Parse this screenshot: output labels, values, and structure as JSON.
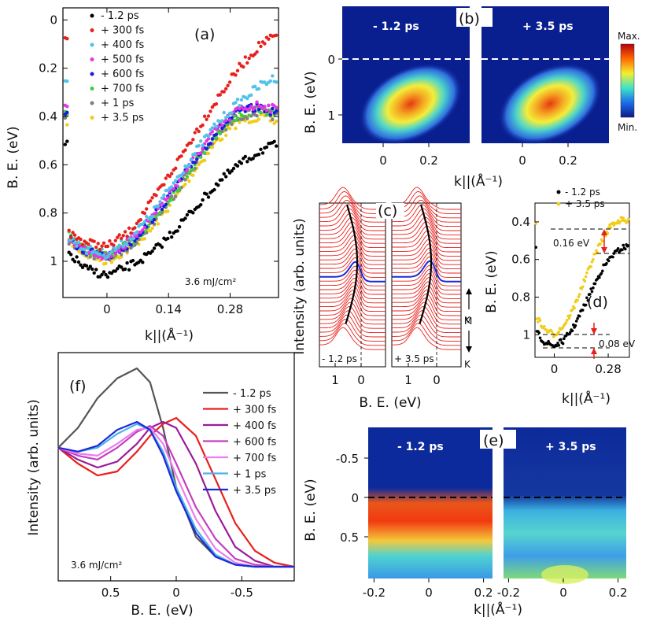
{
  "figure_title": "",
  "chart_data": [
    {
      "panel": "(a)",
      "type": "scatter",
      "xlabel": "k||(Å⁻¹)",
      "ylabel": "B. E. (eV)",
      "x_ticks": [
        "0",
        "0.14",
        "0.28"
      ],
      "y_ticks": [
        "0",
        "0.2",
        "0.4",
        "0.6",
        "0.8",
        "1"
      ],
      "xlim": [
        -0.1,
        0.39
      ],
      "ylim": [
        -0.05,
        1.15
      ],
      "y_inverted": true,
      "annotation": "3.6 mJ/cm²",
      "series": [
        {
          "name": "- 1.2 ps",
          "color": "#000000",
          "x": [
            -0.09,
            -0.05,
            0.0,
            0.05,
            0.1,
            0.15,
            0.2,
            0.25,
            0.3,
            0.35,
            0.38
          ],
          "y": [
            0.96,
            1.03,
            1.06,
            1.02,
            0.97,
            0.88,
            0.78,
            0.68,
            0.6,
            0.54,
            0.52
          ]
        },
        {
          "name": "+ 300 fs",
          "color": "#e8201c",
          "x": [
            -0.09,
            -0.05,
            0.0,
            0.05,
            0.1,
            0.15,
            0.2,
            0.25,
            0.3,
            0.35,
            0.38
          ],
          "y": [
            0.88,
            0.92,
            0.94,
            0.88,
            0.76,
            0.62,
            0.47,
            0.33,
            0.2,
            0.1,
            0.07
          ]
        },
        {
          "name": "+ 400 fs",
          "color": "#4fc3e8",
          "x": [
            -0.09,
            -0.05,
            0.0,
            0.05,
            0.1,
            0.15,
            0.2,
            0.25,
            0.3,
            0.35,
            0.38
          ],
          "y": [
            0.9,
            0.95,
            0.97,
            0.91,
            0.81,
            0.68,
            0.55,
            0.43,
            0.34,
            0.27,
            0.24
          ]
        },
        {
          "name": "+ 500 fs",
          "color": "#e436e4",
          "x": [
            -0.09,
            -0.05,
            0.0,
            0.05,
            0.1,
            0.15,
            0.2,
            0.25,
            0.3,
            0.35,
            0.38
          ],
          "y": [
            0.9,
            0.95,
            0.98,
            0.92,
            0.82,
            0.7,
            0.57,
            0.45,
            0.37,
            0.35,
            0.37
          ]
        },
        {
          "name": "+ 600 fs",
          "color": "#1a1ae0",
          "x": [
            -0.09,
            -0.05,
            0.0,
            0.05,
            0.1,
            0.15,
            0.2,
            0.25,
            0.3,
            0.35,
            0.38
          ],
          "y": [
            0.9,
            0.96,
            0.98,
            0.93,
            0.83,
            0.71,
            0.58,
            0.46,
            0.38,
            0.36,
            0.38
          ]
        },
        {
          "name": "+ 700 fs",
          "color": "#3ecf3e",
          "x": [
            -0.09,
            -0.05,
            0.0,
            0.05,
            0.1,
            0.15,
            0.2,
            0.25,
            0.3,
            0.35,
            0.38
          ],
          "y": [
            0.88,
            0.95,
            0.98,
            0.93,
            0.84,
            0.72,
            0.59,
            0.47,
            0.39,
            0.37,
            0.39
          ]
        },
        {
          "name": "+ 1 ps",
          "color": "#808080",
          "x": [
            -0.09,
            -0.05,
            0.0,
            0.05,
            0.1,
            0.15,
            0.2,
            0.25,
            0.3,
            0.35,
            0.38
          ],
          "y": [
            0.91,
            0.96,
            0.99,
            0.94,
            0.85,
            0.73,
            0.6,
            0.48,
            0.4,
            0.38,
            0.4
          ]
        },
        {
          "name": "+ 3.5 ps",
          "color": "#f2cc1a",
          "x": [
            -0.09,
            -0.05,
            0.0,
            0.05,
            0.1,
            0.15,
            0.2,
            0.25,
            0.3,
            0.35,
            0.38
          ],
          "y": [
            0.91,
            0.97,
            1.0,
            0.95,
            0.87,
            0.75,
            0.62,
            0.5,
            0.42,
            0.4,
            0.42
          ]
        }
      ]
    },
    {
      "panel": "(b)",
      "type": "heatmap",
      "xlabel": "k||(Å⁻¹)",
      "ylabel": "B. E. (eV)",
      "x_ticks": [
        "0",
        "0.2"
      ],
      "y_ticks": [
        "0",
        "1"
      ],
      "subpanels": [
        "- 1.2 ps",
        "+ 3.5 ps"
      ],
      "colorbar_max": "Max.",
      "colorbar_min": "Min."
    },
    {
      "panel": "(c)",
      "type": "line",
      "xlabel": "B. E. (eV)",
      "ylabel": "Intensity (arb. units)",
      "x_ticks": [
        "1",
        "0"
      ],
      "subpanels": [
        "- 1.2 ps",
        "+ 3.5 ps"
      ],
      "side_labels": [
        "K",
        "M",
        "K"
      ]
    },
    {
      "panel": "(d)",
      "type": "scatter",
      "xlabel": "k||(Å⁻¹)",
      "ylabel": "B. E. (eV)",
      "x_ticks": [
        "0",
        "0.28"
      ],
      "y_ticks": [
        "0.4",
        "0.6",
        "0.8",
        "1"
      ],
      "xlim": [
        -0.1,
        0.39
      ],
      "ylim": [
        0.3,
        1.12
      ],
      "series": [
        {
          "name": "- 1.2 ps",
          "color": "#000000",
          "x": [
            -0.09,
            -0.05,
            0.0,
            0.05,
            0.1,
            0.15,
            0.2,
            0.25,
            0.3,
            0.35,
            0.38
          ],
          "y": [
            0.99,
            1.04,
            1.06,
            1.03,
            0.96,
            0.86,
            0.75,
            0.65,
            0.58,
            0.54,
            0.53
          ]
        },
        {
          "name": "+ 3.5 ps",
          "color": "#f2cc1a",
          "x": [
            -0.09,
            -0.05,
            0.0,
            0.05,
            0.1,
            0.15,
            0.2,
            0.25,
            0.3,
            0.35,
            0.38
          ],
          "y": [
            0.91,
            0.97,
            1.0,
            0.95,
            0.86,
            0.73,
            0.6,
            0.49,
            0.41,
            0.39,
            0.4
          ]
        }
      ],
      "annotations": [
        "0.16 eV",
        "0.08 eV"
      ]
    },
    {
      "panel": "(e)",
      "type": "heatmap",
      "xlabel": "k||(Å⁻¹)",
      "ylabel": "B. E. (eV)",
      "x_ticks": [
        "-0.2",
        "0",
        "0.2"
      ],
      "y_ticks": [
        "-0.5",
        "0",
        "0.5"
      ],
      "subpanels": [
        "- 1.2 ps",
        "+ 3.5 ps"
      ]
    },
    {
      "panel": "(f)",
      "type": "line",
      "xlabel": "B. E. (eV)",
      "ylabel": "Intensity (arb. units)",
      "x_ticks": [
        "0.5",
        "0",
        "-0.5"
      ],
      "xlim": [
        0.9,
        -0.9
      ],
      "annotation": "3.6 mJ/cm²",
      "series": [
        {
          "name": "- 1.2 ps",
          "color": "#555555",
          "x": [
            0.9,
            0.75,
            0.6,
            0.45,
            0.3,
            0.2,
            0.1,
            0.0,
            -0.15,
            -0.3,
            -0.45,
            -0.6,
            -0.75,
            -0.9
          ],
          "y": [
            0.6,
            0.7,
            0.85,
            0.95,
            1.0,
            0.93,
            0.7,
            0.4,
            0.15,
            0.05,
            0.01,
            0.0,
            0.0,
            0.0
          ]
        },
        {
          "name": "+ 300 fs",
          "color": "#e8201c",
          "x": [
            0.9,
            0.75,
            0.6,
            0.45,
            0.3,
            0.2,
            0.1,
            0.0,
            -0.15,
            -0.3,
            -0.45,
            -0.6,
            -0.75,
            -0.9
          ],
          "y": [
            0.6,
            0.52,
            0.46,
            0.48,
            0.58,
            0.66,
            0.72,
            0.75,
            0.66,
            0.44,
            0.22,
            0.08,
            0.02,
            0.0
          ]
        },
        {
          "name": "+ 400 fs",
          "color": "#9b1a9b",
          "x": [
            0.9,
            0.75,
            0.6,
            0.45,
            0.3,
            0.2,
            0.1,
            0.0,
            -0.15,
            -0.3,
            -0.45,
            -0.6,
            -0.75,
            -0.9
          ],
          "y": [
            0.6,
            0.54,
            0.5,
            0.53,
            0.62,
            0.7,
            0.73,
            0.7,
            0.52,
            0.28,
            0.1,
            0.03,
            0.0,
            0.0
          ]
        },
        {
          "name": "+ 600 fs",
          "color": "#c040c0",
          "x": [
            0.9,
            0.75,
            0.6,
            0.45,
            0.3,
            0.2,
            0.1,
            0.0,
            -0.15,
            -0.3,
            -0.45,
            -0.6,
            -0.75,
            -0.9
          ],
          "y": [
            0.6,
            0.56,
            0.54,
            0.6,
            0.68,
            0.71,
            0.66,
            0.52,
            0.3,
            0.14,
            0.04,
            0.01,
            0.0,
            0.0
          ]
        },
        {
          "name": "+ 700 fs",
          "color": "#f07af0",
          "x": [
            0.9,
            0.75,
            0.6,
            0.45,
            0.3,
            0.2,
            0.1,
            0.0,
            -0.15,
            -0.3,
            -0.45,
            -0.6,
            -0.75,
            -0.9
          ],
          "y": [
            0.6,
            0.57,
            0.56,
            0.62,
            0.69,
            0.7,
            0.62,
            0.46,
            0.24,
            0.09,
            0.02,
            0.0,
            0.0,
            0.0
          ]
        },
        {
          "name": "+ 1 ps",
          "color": "#4fb0e8",
          "x": [
            0.9,
            0.75,
            0.6,
            0.45,
            0.3,
            0.2,
            0.1,
            0.0,
            -0.15,
            -0.3,
            -0.45,
            -0.6,
            -0.75,
            -0.9
          ],
          "y": [
            0.6,
            0.58,
            0.6,
            0.67,
            0.72,
            0.69,
            0.58,
            0.4,
            0.19,
            0.06,
            0.01,
            0.0,
            0.0,
            0.0
          ]
        },
        {
          "name": "+ 3.5 ps",
          "color": "#1a2ad8",
          "x": [
            0.9,
            0.75,
            0.6,
            0.45,
            0.3,
            0.2,
            0.1,
            0.0,
            -0.15,
            -0.3,
            -0.45,
            -0.6,
            -0.75,
            -0.9
          ],
          "y": [
            0.6,
            0.58,
            0.61,
            0.69,
            0.73,
            0.69,
            0.56,
            0.38,
            0.17,
            0.05,
            0.01,
            0.0,
            0.0,
            0.0
          ]
        }
      ]
    }
  ]
}
